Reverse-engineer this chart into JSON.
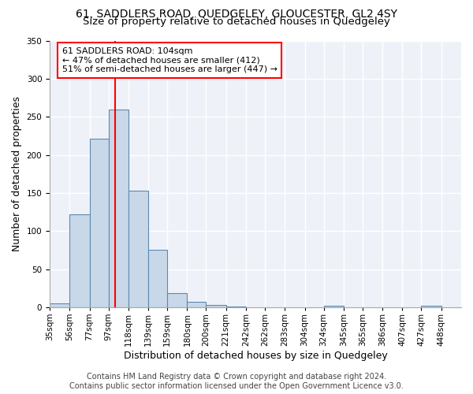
{
  "title": "61, SADDLERS ROAD, QUEDGELEY, GLOUCESTER, GL2 4SY",
  "subtitle": "Size of property relative to detached houses in Quedgeley",
  "xlabel": "Distribution of detached houses by size in Quedgeley",
  "ylabel": "Number of detached properties",
  "bar_color": "#c8d8e8",
  "bar_edge_color": "#5b8ab0",
  "background_color": "#eef2f8",
  "grid_color": "#ffffff",
  "red_line_x": 104,
  "bin_edges": [
    35,
    56,
    77,
    97,
    118,
    139,
    159,
    180,
    200,
    221,
    242,
    262,
    283,
    304,
    324,
    345,
    365,
    386,
    407,
    427,
    448,
    469
  ],
  "tick_labels": [
    "35sqm",
    "56sqm",
    "77sqm",
    "97sqm",
    "118sqm",
    "139sqm",
    "159sqm",
    "180sqm",
    "200sqm",
    "221sqm",
    "242sqm",
    "262sqm",
    "283sqm",
    "304sqm",
    "324sqm",
    "345sqm",
    "365sqm",
    "386sqm",
    "407sqm",
    "427sqm",
    "448sqm"
  ],
  "values": [
    5,
    122,
    221,
    260,
    153,
    75,
    19,
    7,
    3,
    1,
    0,
    0,
    0,
    0,
    2,
    0,
    0,
    0,
    0,
    2,
    0
  ],
  "ylim": [
    0,
    350
  ],
  "yticks": [
    0,
    50,
    100,
    150,
    200,
    250,
    300,
    350
  ],
  "annotation_text": "61 SADDLERS ROAD: 104sqm\n← 47% of detached houses are smaller (412)\n51% of semi-detached houses are larger (447) →",
  "footer_text": "Contains HM Land Registry data © Crown copyright and database right 2024.\nContains public sector information licensed under the Open Government Licence v3.0.",
  "title_fontsize": 10,
  "subtitle_fontsize": 9.5,
  "axis_label_fontsize": 9,
  "tick_fontsize": 7.5,
  "annotation_fontsize": 8,
  "footer_fontsize": 7
}
